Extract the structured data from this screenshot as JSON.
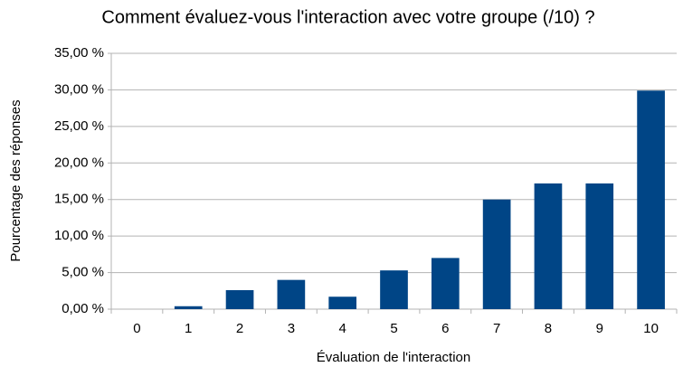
{
  "chart_data": {
    "type": "bar",
    "title": "Comment évaluez-vous l'interaction avec votre groupe (/10) ?",
    "x_label": "Évaluation de l'interaction",
    "y_label": "Pourcentage des réponses",
    "categories": [
      "0",
      "1",
      "2",
      "3",
      "4",
      "5",
      "6",
      "7",
      "8",
      "9",
      "10"
    ],
    "values": [
      0,
      0.4,
      2.6,
      4.0,
      1.7,
      5.3,
      7.0,
      15.0,
      17.2,
      17.2,
      29.9
    ],
    "color": "#004586",
    "ylim": [
      0,
      35
    ],
    "yticks": [
      {
        "value": 0,
        "label": "0,00 %"
      },
      {
        "value": 5,
        "label": "5,00 %"
      },
      {
        "value": 10,
        "label": "10,00 %"
      },
      {
        "value": 15,
        "label": "15,00 %"
      },
      {
        "value": 20,
        "label": "20,00 %"
      },
      {
        "value": 25,
        "label": "25,00 %"
      },
      {
        "value": 30,
        "label": "30,00 %"
      },
      {
        "value": 35,
        "label": "35,00 %"
      }
    ],
    "grid": true
  }
}
